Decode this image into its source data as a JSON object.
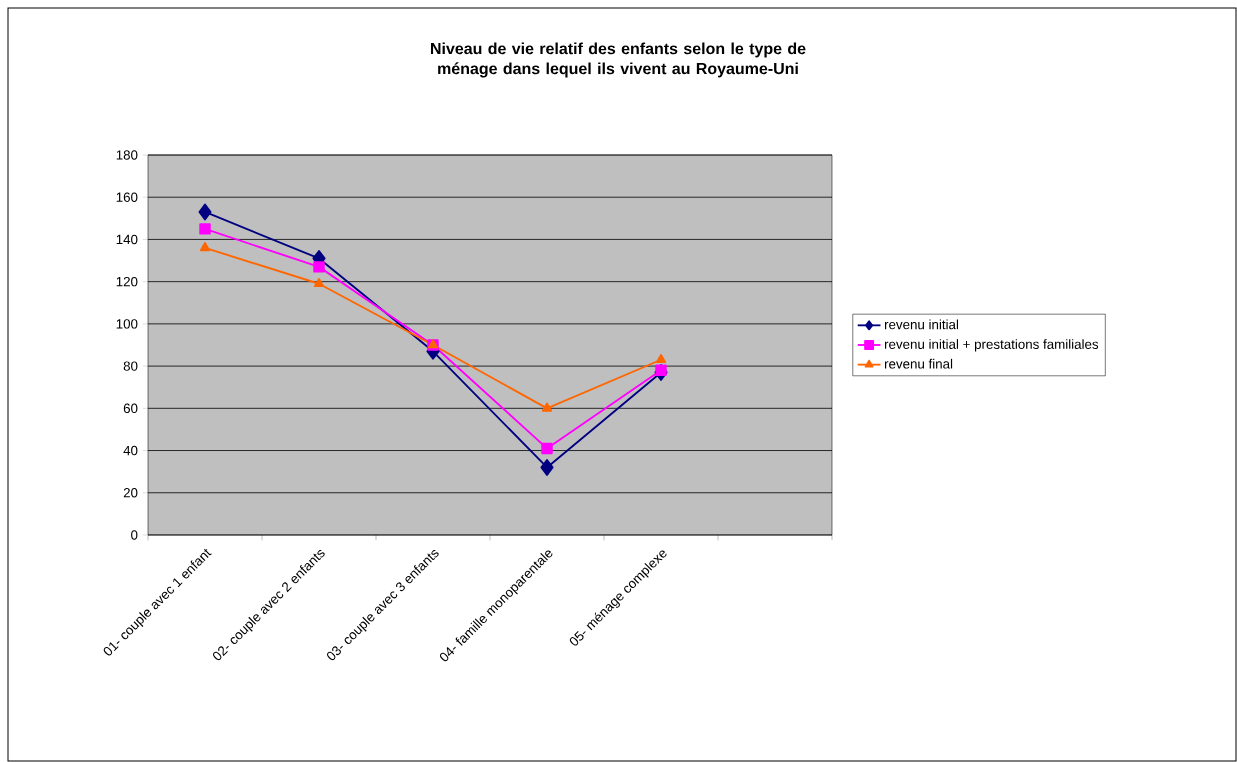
{
  "chart_data": {
    "type": "line",
    "title": "Niveau de vie relatif des enfants selon le type de ménage dans lequel ils vivent au Royaume-Uni",
    "categories": [
      "01- couple avec 1 enfant",
      "02- couple avec 2 enfants",
      "03- couple avec 3 enfants",
      "04- famille monoparentale",
      "05- ménage complexe",
      null
    ],
    "series": [
      {
        "name": "revenu initial",
        "color": "#000080",
        "marker": "diamond",
        "values": [
          153,
          131,
          87,
          32,
          77,
          null
        ]
      },
      {
        "name": "revenu initial + prestations familiales",
        "color": "#ff00ff",
        "marker": "square",
        "values": [
          145,
          127,
          90,
          41,
          78,
          null
        ]
      },
      {
        "name": "revenu final",
        "color": "#ff6600",
        "marker": "triangle",
        "values": [
          136,
          119,
          90,
          60,
          83,
          null
        ]
      }
    ],
    "ylim": [
      0,
      180
    ],
    "yticks": [
      0,
      20,
      40,
      60,
      80,
      100,
      120,
      140,
      160,
      180
    ],
    "grid": "y",
    "legend": "right",
    "line_style": "solid"
  }
}
